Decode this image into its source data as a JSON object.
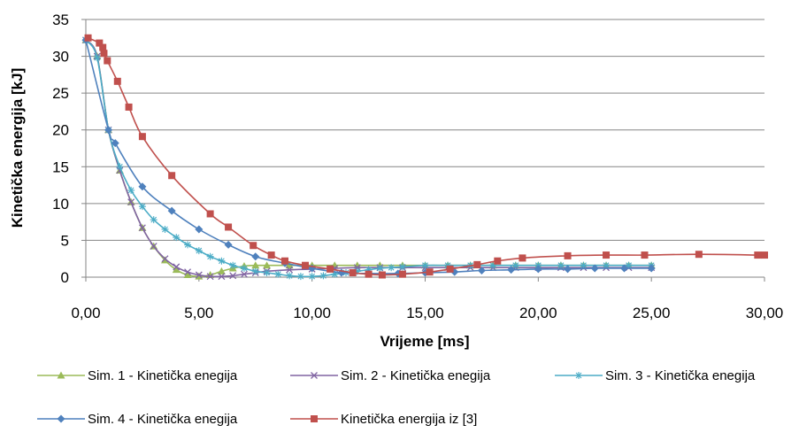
{
  "chart_data": {
    "type": "line",
    "title": "",
    "xlabel": "Vrijeme [ms]",
    "ylabel": "Kinetička energija [kJ]",
    "xlim": [
      0,
      30
    ],
    "ylim": [
      0,
      35
    ],
    "x_ticks": [
      "0,00",
      "5,00",
      "10,00",
      "15,00",
      "20,00",
      "25,00",
      "30,00"
    ],
    "y_ticks": [
      "0",
      "5",
      "10",
      "15",
      "20",
      "25",
      "30",
      "35"
    ],
    "grid": "horizontal",
    "legend_position": "bottom",
    "series": [
      {
        "name": "Sim. 1 - Kinetička enegija",
        "color": "#9bbb59",
        "marker": "triangle",
        "points": [
          [
            0,
            32.2
          ],
          [
            0.5,
            30.0
          ],
          [
            1.0,
            20.0
          ],
          [
            1.5,
            14.5
          ],
          [
            2.0,
            10.2
          ],
          [
            2.5,
            6.7
          ],
          [
            3.0,
            4.2
          ],
          [
            3.5,
            2.3
          ],
          [
            4.0,
            1.0
          ],
          [
            4.5,
            0.3
          ],
          [
            5.0,
            0.1
          ],
          [
            5.5,
            0.3
          ],
          [
            6.0,
            0.8
          ],
          [
            6.5,
            1.2
          ],
          [
            7.0,
            1.5
          ],
          [
            7.5,
            1.6
          ],
          [
            8.0,
            1.6
          ],
          [
            9.0,
            1.6
          ],
          [
            10.0,
            1.6
          ],
          [
            11.0,
            1.6
          ],
          [
            12.0,
            1.6
          ],
          [
            13.0,
            1.6
          ],
          [
            14.0,
            1.6
          ],
          [
            15.0,
            1.6
          ],
          [
            16.0,
            1.6
          ],
          [
            17.0,
            1.6
          ],
          [
            18.0,
            1.6
          ],
          [
            19.0,
            1.6
          ],
          [
            20.0,
            1.6
          ],
          [
            21.0,
            1.6
          ],
          [
            22.0,
            1.6
          ],
          [
            23.0,
            1.6
          ],
          [
            24.0,
            1.6
          ],
          [
            25.0,
            1.6
          ]
        ]
      },
      {
        "name": "Sim. 2 - Kinetička enegija",
        "color": "#8064a2",
        "marker": "x",
        "points": [
          [
            0,
            32.2
          ],
          [
            0.5,
            30.0
          ],
          [
            1.0,
            20.0
          ],
          [
            1.5,
            14.5
          ],
          [
            2.0,
            10.2
          ],
          [
            2.5,
            6.7
          ],
          [
            3.0,
            4.2
          ],
          [
            3.5,
            2.5
          ],
          [
            4.0,
            1.4
          ],
          [
            4.5,
            0.7
          ],
          [
            5.0,
            0.3
          ],
          [
            5.5,
            0.1
          ],
          [
            6.0,
            0.1
          ],
          [
            6.5,
            0.2
          ],
          [
            7.0,
            0.4
          ],
          [
            7.5,
            0.6
          ],
          [
            8.0,
            0.8
          ],
          [
            9.0,
            1.0
          ],
          [
            10.0,
            1.1
          ],
          [
            11.0,
            1.2
          ],
          [
            12.0,
            1.3
          ],
          [
            13.0,
            1.3
          ],
          [
            14.0,
            1.3
          ],
          [
            15.0,
            1.3
          ],
          [
            16.0,
            1.3
          ],
          [
            17.0,
            1.3
          ],
          [
            18.0,
            1.3
          ],
          [
            19.0,
            1.3
          ],
          [
            20.0,
            1.3
          ],
          [
            21.0,
            1.3
          ],
          [
            22.0,
            1.3
          ],
          [
            23.0,
            1.3
          ],
          [
            24.0,
            1.3
          ],
          [
            25.0,
            1.3
          ]
        ]
      },
      {
        "name": "Sim. 3 - Kinetička enegija",
        "color": "#4bacc6",
        "marker": "asterisk",
        "points": [
          [
            0,
            32.2
          ],
          [
            0.5,
            29.8
          ],
          [
            1.0,
            20.0
          ],
          [
            1.5,
            15.0
          ],
          [
            2.0,
            11.8
          ],
          [
            2.5,
            9.6
          ],
          [
            3.0,
            7.8
          ],
          [
            3.5,
            6.5
          ],
          [
            4.0,
            5.4
          ],
          [
            4.5,
            4.4
          ],
          [
            5.0,
            3.6
          ],
          [
            5.5,
            2.8
          ],
          [
            6.0,
            2.2
          ],
          [
            6.5,
            1.6
          ],
          [
            7.0,
            1.2
          ],
          [
            7.5,
            0.8
          ],
          [
            8.0,
            0.6
          ],
          [
            8.5,
            0.4
          ],
          [
            9.0,
            0.2
          ],
          [
            9.5,
            0.1
          ],
          [
            10.0,
            0.1
          ],
          [
            10.5,
            0.2
          ],
          [
            11.0,
            0.4
          ],
          [
            11.5,
            0.6
          ],
          [
            12.0,
            0.8
          ],
          [
            12.5,
            1.0
          ],
          [
            13.0,
            1.2
          ],
          [
            13.5,
            1.3
          ],
          [
            14.0,
            1.4
          ],
          [
            15.0,
            1.6
          ],
          [
            16.0,
            1.6
          ],
          [
            17.0,
            1.6
          ],
          [
            18.0,
            1.6
          ],
          [
            19.0,
            1.6
          ],
          [
            20.0,
            1.6
          ],
          [
            21.0,
            1.6
          ],
          [
            22.0,
            1.6
          ],
          [
            23.0,
            1.6
          ],
          [
            24.0,
            1.6
          ],
          [
            25.0,
            1.6
          ]
        ]
      },
      {
        "name": "Sim. 4 - Kinetička enegija",
        "color": "#4f81bd",
        "marker": "diamond",
        "points": [
          [
            0,
            32.2
          ],
          [
            1.0,
            20.0
          ],
          [
            1.3,
            18.2
          ],
          [
            2.5,
            12.3
          ],
          [
            3.8,
            9.0
          ],
          [
            5.0,
            6.5
          ],
          [
            6.3,
            4.4
          ],
          [
            7.5,
            2.8
          ],
          [
            8.8,
            1.9
          ],
          [
            10.0,
            1.2
          ],
          [
            11.3,
            0.6
          ],
          [
            12.5,
            0.5
          ],
          [
            13.8,
            0.5
          ],
          [
            15.0,
            0.6
          ],
          [
            16.3,
            0.7
          ],
          [
            17.5,
            0.9
          ],
          [
            18.8,
            1.0
          ],
          [
            20.0,
            1.1
          ],
          [
            21.3,
            1.1
          ],
          [
            22.5,
            1.2
          ],
          [
            23.8,
            1.2
          ],
          [
            25.0,
            1.2
          ]
        ]
      },
      {
        "name": "Kinetička energija iz [3]",
        "color": "#c0504d",
        "marker": "square",
        "points": [
          [
            0.1,
            32.5
          ],
          [
            0.6,
            31.8
          ],
          [
            0.75,
            31.2
          ],
          [
            0.8,
            30.4
          ],
          [
            0.95,
            29.4
          ],
          [
            1.4,
            26.6
          ],
          [
            1.9,
            23.1
          ],
          [
            2.5,
            19.1
          ],
          [
            3.8,
            13.8
          ],
          [
            5.5,
            8.6
          ],
          [
            6.3,
            6.8
          ],
          [
            7.4,
            4.3
          ],
          [
            8.2,
            3.0
          ],
          [
            8.8,
            2.2
          ],
          [
            9.7,
            1.6
          ],
          [
            10.8,
            1.1
          ],
          [
            11.8,
            0.6
          ],
          [
            12.5,
            0.4
          ],
          [
            13.1,
            0.3
          ],
          [
            14.0,
            0.4
          ],
          [
            15.2,
            0.7
          ],
          [
            16.1,
            1.1
          ],
          [
            17.3,
            1.7
          ],
          [
            18.2,
            2.2
          ],
          [
            19.3,
            2.6
          ],
          [
            21.3,
            2.9
          ],
          [
            23.0,
            3.0
          ],
          [
            24.7,
            3.0
          ],
          [
            27.1,
            3.1
          ],
          [
            29.7,
            3.0
          ],
          [
            30.0,
            3.0
          ]
        ]
      }
    ]
  }
}
